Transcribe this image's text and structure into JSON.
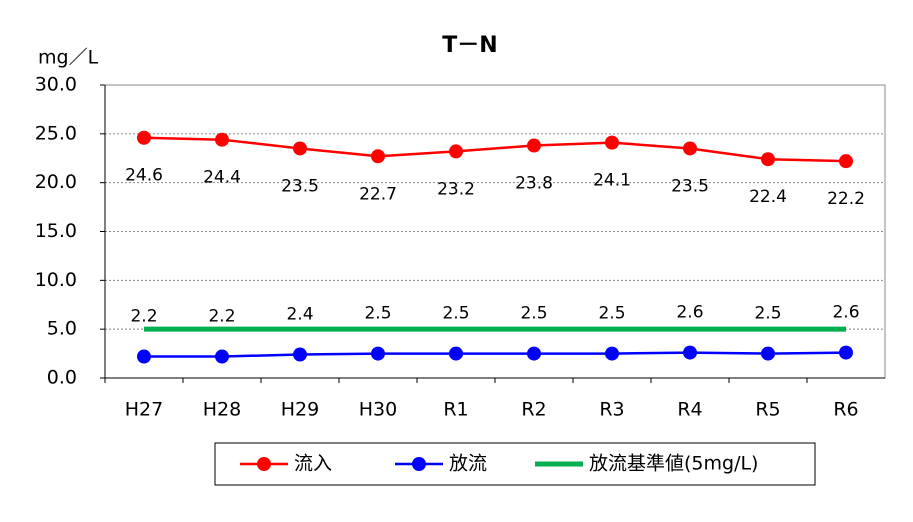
{
  "chart_data": {
    "type": "line",
    "title": "T－N",
    "y_label": "mg／L",
    "categories": [
      "H27",
      "H28",
      "H29",
      "H30",
      "R1",
      "R2",
      "R3",
      "R4",
      "R5",
      "R6"
    ],
    "series": [
      {
        "name": "流入",
        "color": "#ff0000",
        "marker": "circle",
        "label_position": "below",
        "values": [
          24.6,
          24.4,
          23.5,
          22.7,
          23.2,
          23.8,
          24.1,
          23.5,
          22.4,
          22.2
        ]
      },
      {
        "name": "放流",
        "color": "#0000ff",
        "marker": "circle",
        "label_position": "above",
        "values": [
          2.2,
          2.2,
          2.4,
          2.5,
          2.5,
          2.5,
          2.5,
          2.6,
          2.5,
          2.6
        ]
      },
      {
        "name": "放流基準値(5mg/L)",
        "color": "#00b050",
        "marker": "none",
        "label_position": "none",
        "values": [
          5,
          5,
          5,
          5,
          5,
          5,
          5,
          5,
          5,
          5
        ]
      }
    ],
    "ylim": [
      0,
      30
    ],
    "yticks": [
      {
        "value": 0,
        "label": "0.0"
      },
      {
        "value": 5,
        "label": "5.0"
      },
      {
        "value": 10,
        "label": "10.0"
      },
      {
        "value": 15,
        "label": "15.0"
      },
      {
        "value": 20,
        "label": "20.0"
      },
      {
        "value": 25,
        "label": "25.0"
      },
      {
        "value": 30,
        "label": "30.0"
      }
    ],
    "grid": true,
    "legend": "bottom"
  }
}
